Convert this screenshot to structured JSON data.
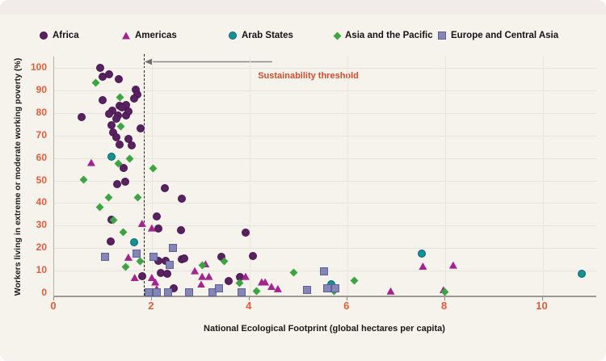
{
  "chart_data": {
    "type": "scatter",
    "xlabel": "National Ecological Footprint (global hectares per capita)",
    "ylabel": "Workers living in extreme or moderate working poverty (%)",
    "xlim": [
      0,
      11.1
    ],
    "ylim": [
      0,
      105
    ],
    "x_ticks": [
      0,
      2,
      4,
      6,
      8,
      10
    ],
    "y_ticks": [
      0,
      10,
      20,
      30,
      40,
      50,
      60,
      70,
      80,
      90,
      100
    ],
    "grid": true,
    "legend_position": "top",
    "annotation": {
      "label": "Sustainability threshold",
      "x": 1.84,
      "arrow_to_x": 4.45,
      "arrow_y": 103
    },
    "series": [
      {
        "name": "Africa",
        "marker": "circle",
        "color": "#5a2161",
        "points": [
          [
            0.94,
            100
          ],
          [
            1.0,
            96
          ],
          [
            1.13,
            97
          ],
          [
            1.33,
            95
          ],
          [
            1.67,
            90.5
          ],
          [
            1.7,
            88
          ],
          [
            1.64,
            86.5
          ],
          [
            1.0,
            85.5
          ],
          [
            1.19,
            81
          ],
          [
            1.34,
            83
          ],
          [
            1.47,
            83.5
          ],
          [
            1.39,
            82.5
          ],
          [
            1.31,
            79
          ],
          [
            1.47,
            79
          ],
          [
            1.52,
            80.5
          ],
          [
            0.57,
            78
          ],
          [
            1.12,
            79.5
          ],
          [
            1.27,
            77.5
          ],
          [
            1.17,
            74.5
          ],
          [
            1.77,
            73
          ],
          [
            1.2,
            71.5
          ],
          [
            1.27,
            69
          ],
          [
            1.52,
            68.5
          ],
          [
            1.59,
            65.5
          ],
          [
            1.34,
            66
          ],
          [
            1.42,
            55.5
          ],
          [
            1.29,
            48.5
          ],
          [
            1.45,
            49.5
          ],
          [
            2.27,
            46.5
          ],
          [
            2.61,
            42
          ],
          [
            1.17,
            32.5
          ],
          [
            2.1,
            34
          ],
          [
            2.13,
            28.5
          ],
          [
            2.59,
            28
          ],
          [
            3.92,
            27
          ],
          [
            1.16,
            23
          ],
          [
            2.13,
            14.5
          ],
          [
            2.28,
            14.5
          ],
          [
            2.61,
            15
          ],
          [
            2.66,
            15.5
          ],
          [
            3.42,
            16
          ],
          [
            4.07,
            16.5
          ],
          [
            1.8,
            7.5
          ],
          [
            2.18,
            9
          ],
          [
            2.31,
            8.5
          ],
          [
            2.45,
            2
          ],
          [
            3.57,
            5.5
          ],
          [
            3.8,
            7
          ]
        ]
      },
      {
        "name": "Americas",
        "marker": "triangle",
        "color": "#a5238e",
        "points": [
          [
            0.76,
            58
          ],
          [
            1.8,
            31
          ],
          [
            2.0,
            29
          ],
          [
            1.52,
            16
          ],
          [
            1.65,
            7
          ],
          [
            2.0,
            7
          ],
          [
            2.07,
            5
          ],
          [
            2.1,
            2
          ],
          [
            2.88,
            10
          ],
          [
            3.1,
            13
          ],
          [
            3.03,
            7.5
          ],
          [
            3.17,
            7.5
          ],
          [
            3.01,
            4
          ],
          [
            3.92,
            7.5
          ],
          [
            4.25,
            5
          ],
          [
            4.32,
            5
          ],
          [
            4.45,
            3
          ],
          [
            4.58,
            2
          ],
          [
            6.89,
            1
          ],
          [
            7.55,
            12
          ],
          [
            8.17,
            12.5
          ],
          [
            7.97,
            1.5
          ]
        ]
      },
      {
        "name": "Arab States",
        "marker": "circle",
        "color": "#0f9394",
        "points": [
          [
            1.18,
            60.5
          ],
          [
            1.64,
            22.5
          ],
          [
            5.67,
            4
          ],
          [
            7.52,
            17.5
          ],
          [
            10.8,
            8.5
          ]
        ]
      },
      {
        "name": "Asia and the Pacific",
        "marker": "diamond",
        "color": "#3ca441",
        "points": [
          [
            0.85,
            93.5
          ],
          [
            1.35,
            87
          ],
          [
            1.36,
            74
          ],
          [
            1.55,
            59.5
          ],
          [
            1.31,
            57.5
          ],
          [
            2.03,
            55.5
          ],
          [
            0.61,
            50.5
          ],
          [
            1.12,
            42.5
          ],
          [
            1.72,
            42.5
          ],
          [
            0.94,
            38
          ],
          [
            1.22,
            32.5
          ],
          [
            1.42,
            27
          ],
          [
            1.77,
            14
          ],
          [
            1.47,
            11.5
          ],
          [
            3.04,
            12.5
          ],
          [
            3.49,
            14
          ],
          [
            3.79,
            4.5
          ],
          [
            4.15,
            1
          ],
          [
            4.91,
            9
          ],
          [
            5.74,
            1
          ],
          [
            6.15,
            5.5
          ],
          [
            8.0,
            0.5
          ]
        ]
      },
      {
        "name": "Europe and Central Asia",
        "marker": "square",
        "color": "#8486b8",
        "points": [
          [
            1.05,
            16
          ],
          [
            1.69,
            17.5
          ],
          [
            2.03,
            16
          ],
          [
            2.36,
            12.5
          ],
          [
            2.43,
            20
          ],
          [
            1.93,
            0.5
          ],
          [
            2.1,
            0.5
          ],
          [
            2.33,
            0.5
          ],
          [
            2.76,
            0.5
          ],
          [
            3.24,
            0.5
          ],
          [
            3.37,
            2
          ],
          [
            3.84,
            0.5
          ],
          [
            5.17,
            1.5
          ],
          [
            5.52,
            9.5
          ],
          [
            5.59,
            2
          ],
          [
            5.75,
            2
          ]
        ]
      }
    ],
    "colors": {
      "tick_labels": "#e25c3a",
      "threshold_text": "#d44a2a",
      "dashed_line": "#1f1f1f",
      "arrow": "#8a8a8a",
      "background": "#f6f2ec"
    }
  }
}
